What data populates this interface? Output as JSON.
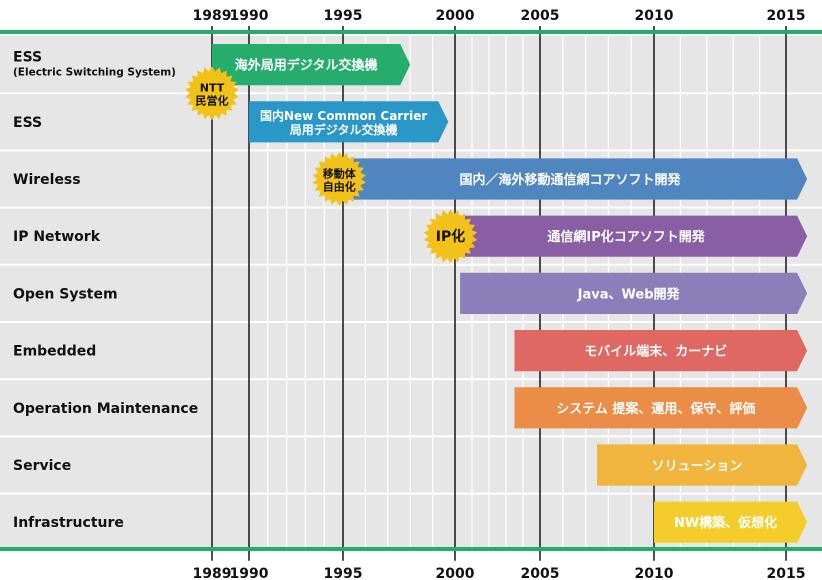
{
  "chart_data": {
    "type": "timeline",
    "title": "",
    "xlim": [
      1989,
      2015
    ],
    "axis_ticks": [
      "1989",
      "1990",
      "1995",
      "2000",
      "2005",
      "2010",
      "2015"
    ],
    "rows": [
      {
        "label": "ESS",
        "sublabel": "(Electric Switching System)"
      },
      {
        "label": "ESS",
        "sublabel": ""
      },
      {
        "label": "Wireless",
        "sublabel": ""
      },
      {
        "label": "IP Network",
        "sublabel": ""
      },
      {
        "label": "Open System",
        "sublabel": ""
      },
      {
        "label": "Embedded",
        "sublabel": ""
      },
      {
        "label": "Operation Maintenance",
        "sublabel": ""
      },
      {
        "label": "Service",
        "sublabel": ""
      },
      {
        "label": "Infrastructure",
        "sublabel": ""
      }
    ],
    "bars": [
      {
        "row": 0,
        "start": 1989,
        "end": 1998,
        "arrow": true,
        "color": "#27ad6b",
        "lines": [
          "海外局用デジタル交換機"
        ]
      },
      {
        "row": 1,
        "start": 1990,
        "end": 1999.7,
        "arrow": true,
        "color": "#2a97c9",
        "lines": [
          "国内New Common Carrier",
          "局用デジタル交換機"
        ]
      },
      {
        "row": 2,
        "start": 1995,
        "end": 2015.8,
        "arrow": true,
        "color": "#4f86bf",
        "lines": [
          "国内／海外移動通信網コアソフト開発"
        ]
      },
      {
        "row": 3,
        "start": 2000,
        "end": 2015.8,
        "arrow": true,
        "color": "#8a5ea4",
        "lines": [
          "通信網IP化コアソフト開発"
        ]
      },
      {
        "row": 4,
        "start": 2000.3,
        "end": 2015.8,
        "arrow": true,
        "color": "#8a7fb8",
        "lines": [
          "Java、Web開発"
        ]
      },
      {
        "row": 5,
        "start": 2003.5,
        "end": 2015.8,
        "arrow": true,
        "color": "#e06863",
        "lines": [
          "モバイル端末、カーナビ"
        ]
      },
      {
        "row": 6,
        "start": 2003.5,
        "end": 2015.8,
        "arrow": true,
        "color": "#eb8c47",
        "lines": [
          "システム 提案、運用、保守、評価"
        ]
      },
      {
        "row": 7,
        "start": 2007.5,
        "end": 2015.8,
        "arrow": true,
        "color": "#f1b43c",
        "lines": [
          "ソリューション"
        ]
      },
      {
        "row": 8,
        "start": 2010,
        "end": 2015.8,
        "arrow": true,
        "color": "#f5cd2a",
        "lines": [
          "NW構築、仮想化"
        ]
      }
    ],
    "badges": [
      {
        "row_between": [
          0,
          1
        ],
        "year": 1989,
        "lines": [
          "NTT",
          "民営化"
        ]
      },
      {
        "row": 2,
        "year": 1994.8,
        "lines": [
          "移動体",
          "自由化"
        ]
      },
      {
        "row": 3,
        "year": 1999.8,
        "lines": [
          "IP化"
        ]
      }
    ]
  }
}
